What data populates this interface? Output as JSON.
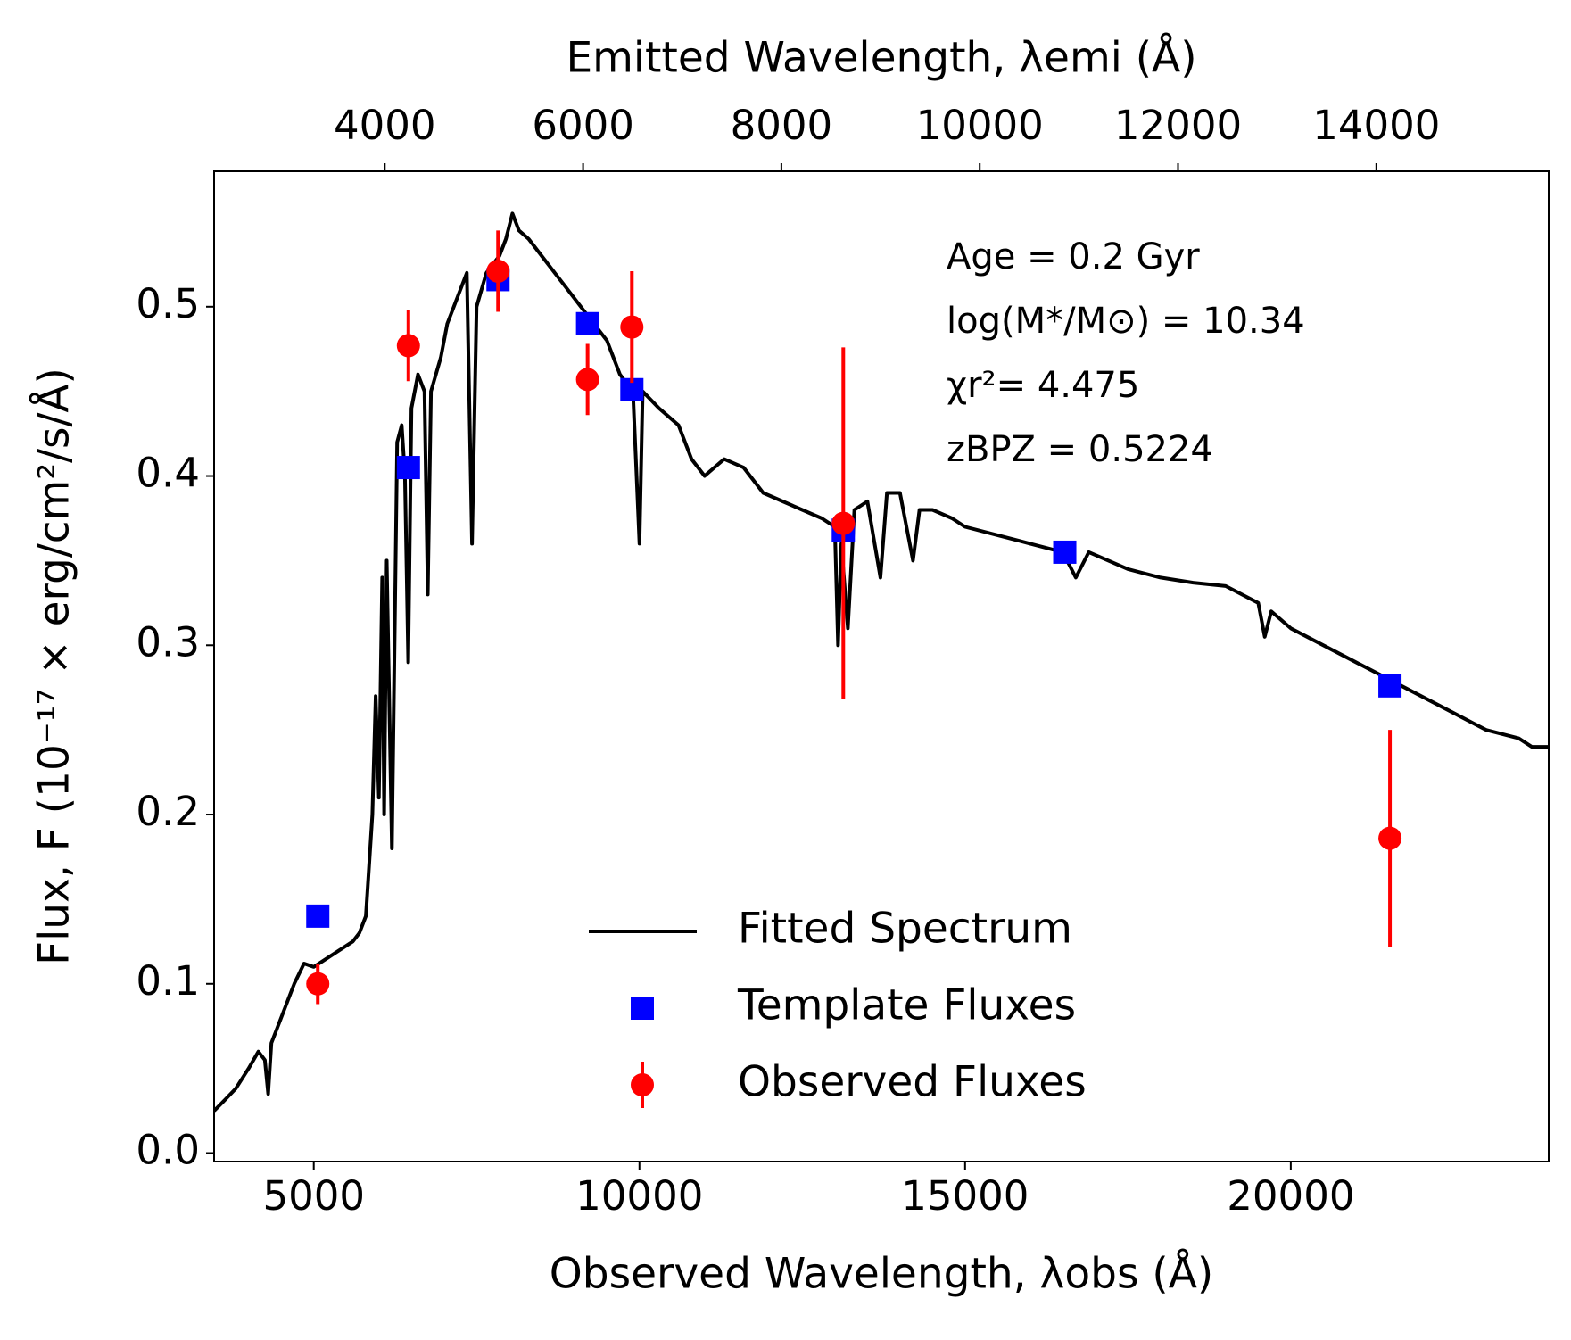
{
  "chart_data": {
    "type": "line",
    "xlabel": "Observed Wavelength, λobs (Å)",
    "ylabel": "Flux, F  (10⁻¹⁷ × erg/cm²/s/Å)",
    "x2label": "Emitted Wavelength, λemi (Å)",
    "annotations": [
      "Age = 0.2 Gyr",
      "log(M*/M⊙) = 10.34",
      "χr²= 4.475",
      "zBPZ = 0.5224"
    ],
    "xlim": [
      3470,
      23960
    ],
    "xticks": [
      5000,
      10000,
      15000,
      20000
    ],
    "x2lim": [
      2279,
      15738
    ],
    "x2ticks": [
      4000,
      6000,
      8000,
      10000,
      12000,
      14000
    ],
    "ylim": [
      -0.005,
      0.58
    ],
    "yticks": [
      {
        "value": 0,
        "label": "0.0"
      },
      0.1,
      0.2,
      0.3,
      0.4,
      0.5
    ],
    "legend": "lower center",
    "series": [
      {
        "name": "Fitted Spectrum",
        "color": "#000000",
        "linestyle": "solid",
        "x": [
          3470,
          3600,
          3800,
          4000,
          4150,
          4250,
          4300,
          4350,
          4500,
          4700,
          4850,
          5000,
          5200,
          5400,
          5600,
          5700,
          5800,
          5900,
          5950,
          6000,
          6050,
          6080,
          6120,
          6200,
          6280,
          6350,
          6400,
          6450,
          6500,
          6600,
          6700,
          6750,
          6800,
          6950,
          7050,
          7150,
          7250,
          7350,
          7430,
          7500,
          7650,
          7750,
          7850,
          7950,
          8050,
          8150,
          8300,
          8500,
          8700,
          8900,
          9100,
          9300,
          9500,
          9700,
          9900,
          10000,
          10050,
          10300,
          10600,
          10800,
          11000,
          11300,
          11600,
          11900,
          12200,
          12500,
          12800,
          13000,
          13050,
          13100,
          13200,
          13300,
          13500,
          13700,
          13800,
          14000,
          14200,
          14300,
          14500,
          14800,
          15000,
          15500,
          16000,
          16500,
          16700,
          16900,
          17500,
          18000,
          18500,
          19000,
          19500,
          19600,
          19700,
          20000,
          20500,
          21000,
          21500,
          22000,
          22500,
          23000,
          23500,
          23700,
          23960
        ],
        "values": [
          0.025,
          0.03,
          0.038,
          0.05,
          0.06,
          0.055,
          0.035,
          0.065,
          0.08,
          0.1,
          0.112,
          0.11,
          0.115,
          0.12,
          0.125,
          0.13,
          0.14,
          0.2,
          0.27,
          0.21,
          0.34,
          0.2,
          0.35,
          0.18,
          0.42,
          0.43,
          0.4,
          0.29,
          0.44,
          0.46,
          0.45,
          0.33,
          0.45,
          0.47,
          0.49,
          0.5,
          0.51,
          0.52,
          0.36,
          0.5,
          0.52,
          0.525,
          0.53,
          0.54,
          0.555,
          0.545,
          0.54,
          0.53,
          0.52,
          0.51,
          0.5,
          0.49,
          0.48,
          0.46,
          0.45,
          0.36,
          0.45,
          0.44,
          0.43,
          0.41,
          0.4,
          0.41,
          0.405,
          0.39,
          0.385,
          0.38,
          0.375,
          0.37,
          0.3,
          0.36,
          0.31,
          0.38,
          0.385,
          0.34,
          0.39,
          0.39,
          0.35,
          0.38,
          0.38,
          0.375,
          0.37,
          0.365,
          0.36,
          0.355,
          0.34,
          0.355,
          0.345,
          0.34,
          0.337,
          0.335,
          0.325,
          0.305,
          0.32,
          0.31,
          0.3,
          0.29,
          0.28,
          0.27,
          0.26,
          0.25,
          0.245,
          0.24,
          0.24
        ]
      },
      {
        "name": "Template Fluxes",
        "color": "#0000ff",
        "linestyle": "none",
        "marker": "s",
        "x": [
          5062,
          6453,
          7829,
          9204,
          9884,
          13130,
          16530,
          21523
        ],
        "values": [
          0.14,
          0.405,
          0.516,
          0.49,
          0.451,
          0.368,
          0.355,
          0.276
        ]
      },
      {
        "name": "Observed Fluxes",
        "color": "#ff0000",
        "linestyle": "none",
        "marker": "o",
        "x": [
          5062,
          6453,
          7829,
          9204,
          9884,
          13130,
          21523
        ],
        "values": [
          0.1,
          0.477,
          0.521,
          0.457,
          0.488,
          0.372,
          0.186
        ],
        "errors": [
          0.012,
          0.021,
          0.024,
          0.021,
          0.033,
          0.104,
          0.064
        ]
      }
    ]
  }
}
